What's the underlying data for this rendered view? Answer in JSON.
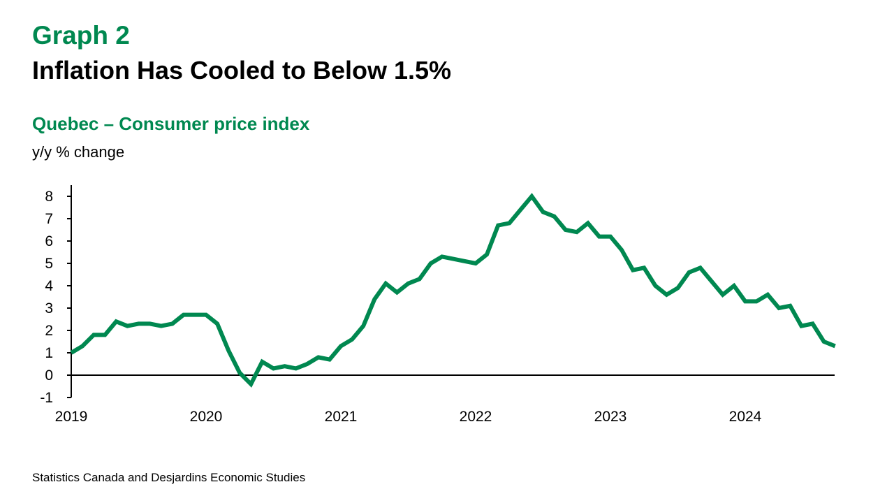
{
  "header": {
    "graph_number": "Graph 2",
    "title": "Inflation Has Cooled to Below 1.5%",
    "subtitle": "Quebec – Consumer price index",
    "unit_label": "y/y % change"
  },
  "footer": {
    "source": "Statistics Canada and Desjardins Economic Studies"
  },
  "colors": {
    "accent": "#008850",
    "line": "#008850",
    "axis": "#000000"
  },
  "chart_data": {
    "type": "line",
    "title": "Quebec – Consumer price index",
    "ylabel": "y/y % change",
    "xlabel": "",
    "ylim": [
      -1,
      8
    ],
    "yticks": [
      "8",
      "7",
      "6",
      "5",
      "4",
      "3",
      "2",
      "1",
      "0",
      "-1"
    ],
    "ytick_values": [
      8,
      7,
      6,
      5,
      4,
      3,
      2,
      1,
      0,
      -1
    ],
    "xtick_labels": [
      "2019",
      "2020",
      "2021",
      "2022",
      "2023",
      "2024"
    ],
    "x_start": "2019-01",
    "x_end": "2024-09",
    "frequency": "monthly",
    "grid": false,
    "series": [
      {
        "name": "Quebec CPI y/y % change",
        "values": [
          1.0,
          1.3,
          1.8,
          1.8,
          2.4,
          2.2,
          2.3,
          2.3,
          2.2,
          2.3,
          2.7,
          2.7,
          2.7,
          2.3,
          1.1,
          0.1,
          -0.4,
          0.6,
          0.3,
          0.4,
          0.3,
          0.5,
          0.8,
          0.7,
          1.3,
          1.6,
          2.2,
          3.4,
          4.1,
          3.7,
          4.1,
          4.3,
          5.0,
          5.3,
          5.2,
          5.1,
          5.0,
          5.4,
          6.7,
          6.8,
          7.4,
          8.0,
          7.3,
          7.1,
          6.5,
          6.4,
          6.8,
          6.2,
          6.2,
          5.6,
          4.7,
          4.8,
          4.0,
          3.6,
          3.9,
          4.6,
          4.8,
          4.2,
          3.6,
          4.0,
          3.3,
          3.3,
          3.6,
          3.0,
          3.1,
          2.2,
          2.3,
          1.5,
          1.3
        ]
      }
    ]
  }
}
